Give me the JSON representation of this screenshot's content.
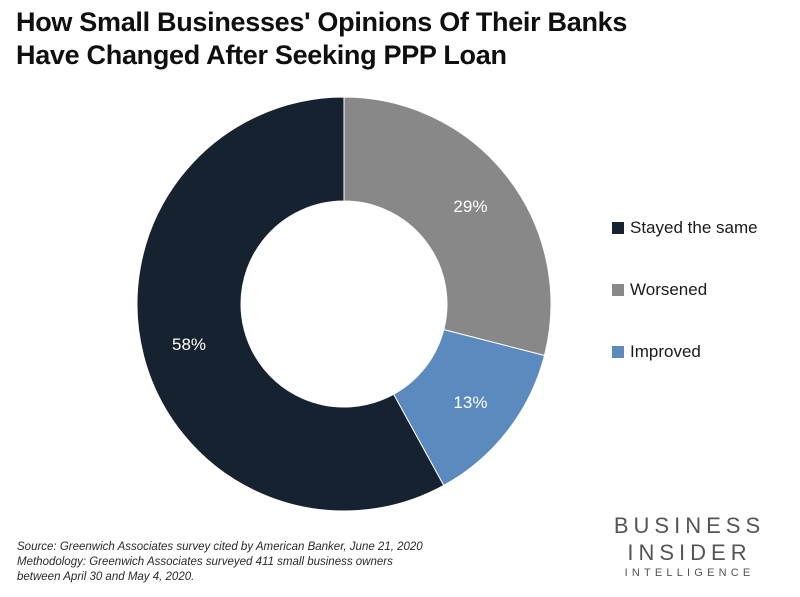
{
  "header": {
    "title_line1": "How Small Businesses' Opinions Of Their Banks",
    "title_line2": "Have Changed After Seeking PPP Loan"
  },
  "chart_data": {
    "type": "pie",
    "variant": "donut",
    "title": "How Small Businesses' Opinions Of Their Banks Have Changed After Seeking PPP Loan",
    "categories": [
      "Stayed the same",
      "Worsened",
      "Improved"
    ],
    "values": [
      58,
      29,
      13
    ],
    "unit": "%",
    "data_labels": [
      "58%",
      "29%",
      "13%"
    ],
    "colors": [
      "#172231",
      "#888888",
      "#5b8abf"
    ],
    "legend_position": "right"
  },
  "legend": {
    "items": [
      {
        "label": "Stayed the same",
        "color": "#172231"
      },
      {
        "label": "Worsened",
        "color": "#888888"
      },
      {
        "label": "Improved",
        "color": "#5b8abf"
      }
    ]
  },
  "footnote": {
    "source": "Source: Greenwich Associates survey cited by American Banker, June 21, 2020",
    "methodology_line1": "Methodology: Greenwich Associates surveyed 411 small business owners",
    "methodology_line2": "between April 30 and May 4, 2020."
  },
  "branding": {
    "line1": "BUSINESS",
    "line2": "INSIDER",
    "line3": "INTELLIGENCE",
    "color": "#555555"
  }
}
